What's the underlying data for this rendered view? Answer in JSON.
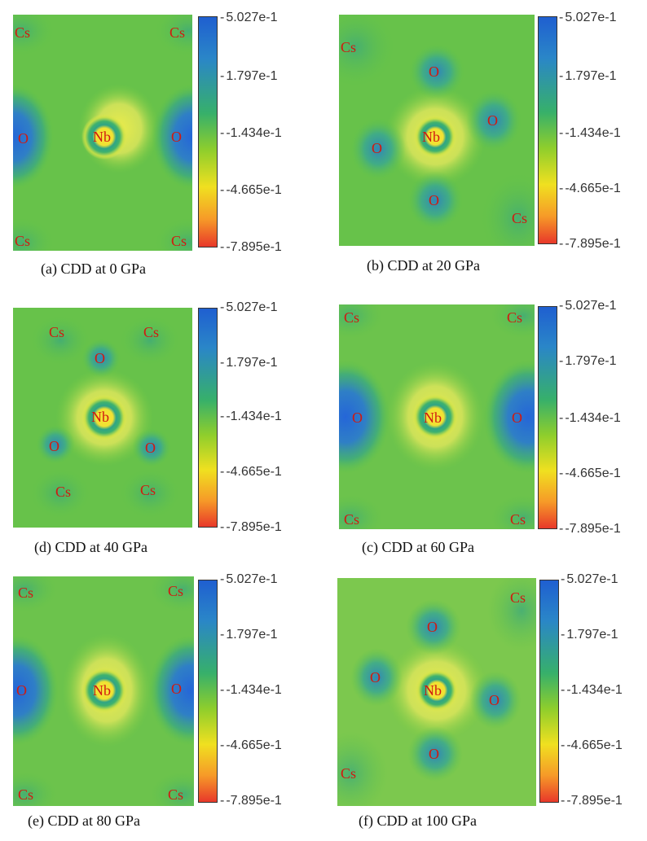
{
  "colorbar": {
    "ticks": [
      "5.027e-1",
      "1.797e-1",
      "-1.434e-1",
      "-4.665e-1",
      "-7.895e-1"
    ]
  },
  "panels": [
    {
      "caption": "(a) CDD at 0 GPa",
      "atoms": [
        {
          "label": "Cs",
          "pos": "top-left"
        },
        {
          "label": "Cs",
          "pos": "top-right"
        },
        {
          "label": "O",
          "pos": "left"
        },
        {
          "label": "Nb",
          "pos": "center"
        },
        {
          "label": "O",
          "pos": "right"
        },
        {
          "label": "Cs",
          "pos": "bottom-left"
        },
        {
          "label": "Cs",
          "pos": "bottom-right"
        }
      ]
    },
    {
      "caption": "(b) CDD at 20 GPa",
      "atoms": [
        {
          "label": "Cs"
        },
        {
          "label": "O"
        },
        {
          "label": "O"
        },
        {
          "label": "Nb"
        },
        {
          "label": "O"
        },
        {
          "label": "O"
        },
        {
          "label": "Cs"
        }
      ]
    },
    {
      "caption": "(d) CDD at 40 GPa",
      "atoms": [
        {
          "label": "Cs"
        },
        {
          "label": "Cs"
        },
        {
          "label": "O"
        },
        {
          "label": "Nb"
        },
        {
          "label": "O"
        },
        {
          "label": "O"
        },
        {
          "label": "Cs"
        },
        {
          "label": "Cs"
        }
      ]
    },
    {
      "caption": "(c) CDD at 60 GPa",
      "atoms": [
        {
          "label": "Cs"
        },
        {
          "label": "Cs"
        },
        {
          "label": "O"
        },
        {
          "label": "Nb"
        },
        {
          "label": "O"
        },
        {
          "label": "Cs"
        },
        {
          "label": "Cs"
        }
      ]
    },
    {
      "caption": "(e) CDD at 80 GPa",
      "atoms": [
        {
          "label": "Cs"
        },
        {
          "label": "Cs"
        },
        {
          "label": "O"
        },
        {
          "label": "Nb"
        },
        {
          "label": "O"
        },
        {
          "label": "Cs"
        },
        {
          "label": "Cs"
        }
      ]
    },
    {
      "caption": "(f) CDD at 100 GPa",
      "atoms": [
        {
          "label": "Cs"
        },
        {
          "label": "O"
        },
        {
          "label": "O"
        },
        {
          "label": "Nb"
        },
        {
          "label": "O"
        },
        {
          "label": "O"
        },
        {
          "label": "Cs"
        }
      ]
    }
  ]
}
